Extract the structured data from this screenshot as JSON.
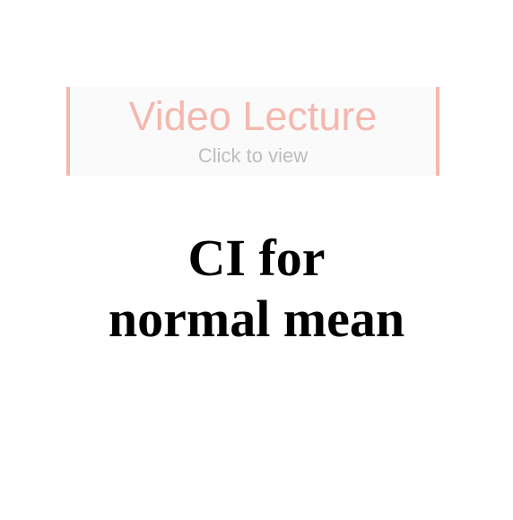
{
  "banner": {
    "title": "Video Lecture",
    "subtitle": "Click to view",
    "accent_color": "#f4b8ae",
    "subtitle_color": "#bdbdbd",
    "background_color": "#fafafa"
  },
  "lecture": {
    "title_line1": "CI for",
    "title_line2": "normal mean"
  }
}
